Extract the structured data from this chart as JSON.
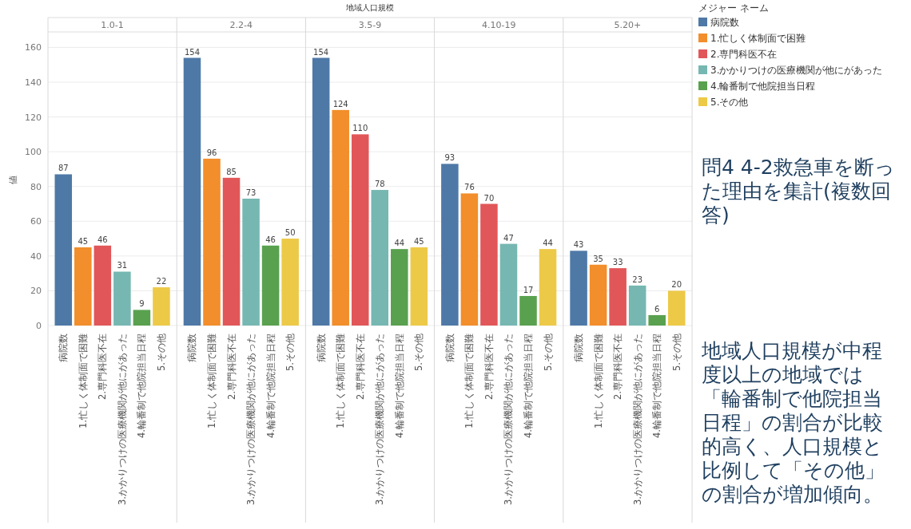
{
  "chart_data": {
    "type": "bar",
    "xlabel": "地域人口規模",
    "ylabel": "値",
    "legend_title": "メジャー ネーム",
    "legend": "right",
    "grid": "y",
    "data_labels": true,
    "categories": [
      "1.0-1",
      "2.2-4",
      "3.5-9",
      "4.10-19",
      "5.20+"
    ],
    "ylim": [
      0,
      168
    ],
    "yticks": [
      0,
      20,
      40,
      60,
      80,
      100,
      120,
      140,
      160
    ],
    "series": [
      {
        "name": "病院数",
        "color": "#4e79a7",
        "values": [
          87,
          154,
          154,
          93,
          43
        ]
      },
      {
        "name": "1.忙しく体制面で困難",
        "color": "#f28e2b",
        "values": [
          45,
          96,
          124,
          76,
          35
        ]
      },
      {
        "name": "2.専門科医不在",
        "color": "#e15759",
        "values": [
          46,
          85,
          110,
          70,
          33
        ]
      },
      {
        "name": "3.かかりつけの医療機関が他にがあった",
        "color": "#76b7b2",
        "values": [
          31,
          73,
          78,
          47,
          23
        ]
      },
      {
        "name": "4.輪番制で他院担当日程",
        "color": "#59a14f",
        "values": [
          9,
          46,
          44,
          17,
          6
        ]
      },
      {
        "name": "5.その他",
        "color": "#edc948",
        "values": [
          22,
          50,
          45,
          44,
          20
        ]
      }
    ],
    "annotations": [
      "問4 4-2救急車を断った理由を集計(複数回答)",
      "地域人口規模が中程度以上の地域では「輪番制で他院担当日程」の割合が比較的高く、人口規模と比例して「その他」の割合が増加傾向。"
    ]
  }
}
